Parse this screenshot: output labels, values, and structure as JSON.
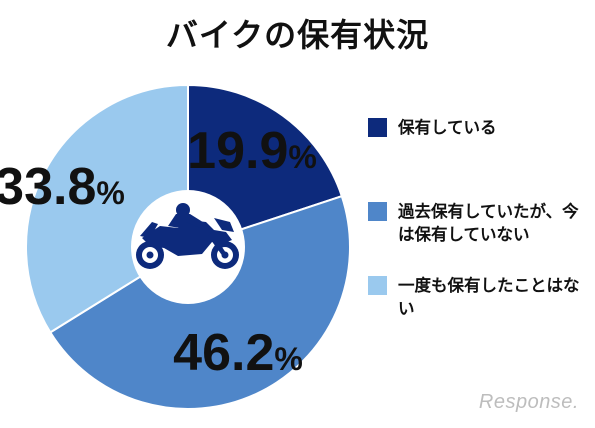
{
  "chart_data": {
    "type": "pie",
    "title": "バイクの保有状況",
    "categories": [
      "保有している",
      "過去保有していたが、今は保有していない",
      "一度も保有したことはない"
    ],
    "values": [
      19.9,
      46.2,
      33.8
    ],
    "value_labels": [
      "19.9",
      "46.2",
      "33.8"
    ],
    "unit": "%",
    "colors": [
      "#0d2a7c",
      "#4f86c9",
      "#9ac9ee"
    ],
    "legend_position": "right",
    "style": "donut",
    "center_icon": "motorcycle-icon"
  },
  "legend": {
    "items": [
      {
        "label": "保有している",
        "color": "#0d2a7c"
      },
      {
        "label": "過去保有していたが、今は保有していない",
        "color": "#4f86c9"
      },
      {
        "label": "一度も保有したことはない",
        "color": "#9ac9ee"
      }
    ]
  },
  "watermark": {
    "text": "Response."
  }
}
